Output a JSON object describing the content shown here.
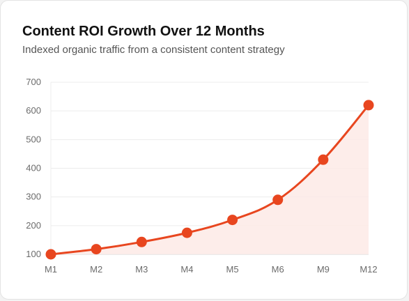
{
  "chart_data": {
    "type": "area",
    "title": "Content ROI Growth Over 12 Months",
    "subtitle": "Indexed organic traffic from a consistent content strategy",
    "xlabel": "",
    "ylabel": "",
    "categories": [
      "M1",
      "M2",
      "M3",
      "M4",
      "M5",
      "M6",
      "M9",
      "M12"
    ],
    "series": [
      {
        "values": [
          100,
          118,
          143,
          175,
          220,
          290,
          430,
          620
        ]
      }
    ],
    "ylim": [
      100,
      700
    ],
    "yticks": [
      100,
      200,
      300,
      400,
      500,
      600,
      700
    ],
    "grid": true,
    "legend": "none",
    "colors": {
      "line": "#e8461f",
      "fill": "#fdeae6",
      "marker": "#e8461f"
    }
  }
}
